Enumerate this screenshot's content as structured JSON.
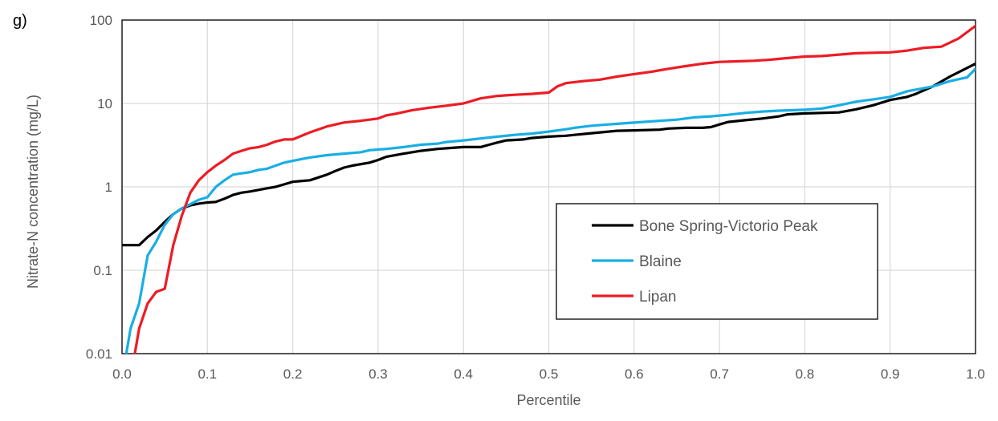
{
  "panel_label": "g)",
  "chart_data": {
    "type": "line",
    "title": "",
    "xlabel": "Percentile",
    "ylabel": "Nitrate-N concentration (mg/L)",
    "xlim": [
      0.0,
      1.0
    ],
    "ylim": [
      0.01,
      100
    ],
    "yscale": "log",
    "grid": true,
    "legend_position": "right",
    "x_ticks": [
      "0.0",
      "0.1",
      "0.2",
      "0.3",
      "0.4",
      "0.5",
      "0.6",
      "0.7",
      "0.8",
      "0.9",
      "1.0"
    ],
    "y_ticks": [
      "0.01",
      "0.1",
      "1",
      "10",
      "100"
    ],
    "series": [
      {
        "name": "Bone Spring-Victorio Peak",
        "color": "#000000",
        "x": [
          0,
          0.02,
          0.03,
          0.04,
          0.05,
          0.06,
          0.07,
          0.08,
          0.09,
          0.1,
          0.11,
          0.12,
          0.13,
          0.14,
          0.15,
          0.16,
          0.17,
          0.18,
          0.19,
          0.2,
          0.22,
          0.24,
          0.25,
          0.26,
          0.27,
          0.29,
          0.3,
          0.31,
          0.33,
          0.35,
          0.37,
          0.39,
          0.4,
          0.42,
          0.43,
          0.44,
          0.45,
          0.47,
          0.48,
          0.5,
          0.51,
          0.52,
          0.53,
          0.55,
          0.57,
          0.58,
          0.6,
          0.63,
          0.64,
          0.66,
          0.68,
          0.69,
          0.7,
          0.71,
          0.73,
          0.75,
          0.77,
          0.78,
          0.8,
          0.84,
          0.86,
          0.88,
          0.9,
          0.92,
          0.93,
          0.95,
          0.97,
          1.0
        ],
        "y": [
          0.2,
          0.2,
          0.25,
          0.3,
          0.38,
          0.47,
          0.55,
          0.6,
          0.63,
          0.65,
          0.66,
          0.72,
          0.8,
          0.85,
          0.88,
          0.92,
          0.96,
          1.0,
          1.07,
          1.15,
          1.2,
          1.4,
          1.55,
          1.7,
          1.8,
          1.95,
          2.1,
          2.3,
          2.5,
          2.7,
          2.85,
          2.95,
          3.0,
          3.0,
          3.2,
          3.4,
          3.6,
          3.7,
          3.85,
          4.0,
          4.05,
          4.1,
          4.2,
          4.4,
          4.6,
          4.7,
          4.75,
          4.85,
          5.0,
          5.1,
          5.1,
          5.2,
          5.6,
          6.0,
          6.3,
          6.6,
          7.0,
          7.4,
          7.6,
          7.8,
          8.5,
          9.5,
          11.0,
          12.0,
          13.0,
          16.0,
          21.0,
          30.0
        ]
      },
      {
        "name": "Blaine",
        "color": "#19aee5",
        "x": [
          0.005,
          0.01,
          0.02,
          0.03,
          0.04,
          0.05,
          0.06,
          0.07,
          0.08,
          0.09,
          0.1,
          0.11,
          0.12,
          0.13,
          0.14,
          0.15,
          0.16,
          0.17,
          0.18,
          0.19,
          0.2,
          0.22,
          0.24,
          0.26,
          0.28,
          0.29,
          0.3,
          0.31,
          0.33,
          0.35,
          0.37,
          0.38,
          0.4,
          0.42,
          0.44,
          0.46,
          0.48,
          0.5,
          0.52,
          0.53,
          0.55,
          0.57,
          0.59,
          0.61,
          0.65,
          0.67,
          0.69,
          0.71,
          0.73,
          0.75,
          0.77,
          0.8,
          0.82,
          0.84,
          0.86,
          0.88,
          0.9,
          0.92,
          0.95,
          0.97,
          0.98,
          0.99,
          1.0
        ],
        "y": [
          0.01,
          0.02,
          0.04,
          0.15,
          0.22,
          0.35,
          0.47,
          0.55,
          0.62,
          0.7,
          0.75,
          1.0,
          1.2,
          1.4,
          1.45,
          1.5,
          1.6,
          1.65,
          1.8,
          1.95,
          2.05,
          2.25,
          2.4,
          2.5,
          2.6,
          2.75,
          2.8,
          2.85,
          3.0,
          3.2,
          3.3,
          3.45,
          3.6,
          3.8,
          4.0,
          4.2,
          4.35,
          4.6,
          4.9,
          5.1,
          5.4,
          5.6,
          5.8,
          6.0,
          6.4,
          6.8,
          7.0,
          7.3,
          7.7,
          8.0,
          8.2,
          8.4,
          8.7,
          9.5,
          10.5,
          11.2,
          12.0,
          14.0,
          16.0,
          18.5,
          19.5,
          20.5,
          26.0
        ]
      },
      {
        "name": "Lipan",
        "color": "#ed1c24",
        "x": [
          0.01,
          0.015,
          0.02,
          0.03,
          0.04,
          0.05,
          0.06,
          0.07,
          0.08,
          0.09,
          0.1,
          0.11,
          0.12,
          0.13,
          0.14,
          0.15,
          0.16,
          0.17,
          0.18,
          0.19,
          0.2,
          0.22,
          0.24,
          0.26,
          0.28,
          0.3,
          0.31,
          0.32,
          0.34,
          0.36,
          0.38,
          0.4,
          0.42,
          0.44,
          0.46,
          0.48,
          0.5,
          0.51,
          0.52,
          0.54,
          0.56,
          0.58,
          0.6,
          0.62,
          0.64,
          0.66,
          0.68,
          0.7,
          0.72,
          0.74,
          0.76,
          0.78,
          0.8,
          0.82,
          0.84,
          0.86,
          0.88,
          0.9,
          0.92,
          0.94,
          0.96,
          0.98,
          1.0
        ],
        "y": [
          0.008,
          0.01,
          0.02,
          0.04,
          0.055,
          0.06,
          0.2,
          0.45,
          0.85,
          1.2,
          1.5,
          1.8,
          2.1,
          2.5,
          2.7,
          2.9,
          3.0,
          3.2,
          3.5,
          3.7,
          3.7,
          4.5,
          5.3,
          5.9,
          6.2,
          6.6,
          7.2,
          7.5,
          8.3,
          8.9,
          9.4,
          10.0,
          11.5,
          12.3,
          12.7,
          13.0,
          13.5,
          16.0,
          17.5,
          18.5,
          19.3,
          21.0,
          22.5,
          24.0,
          26.0,
          28.0,
          30.0,
          31.5,
          32.0,
          32.5,
          33.5,
          35.0,
          36.5,
          37.0,
          38.5,
          40.0,
          40.5,
          41.0,
          43.0,
          46.5,
          48.0,
          60.0,
          85.0
        ]
      }
    ]
  }
}
